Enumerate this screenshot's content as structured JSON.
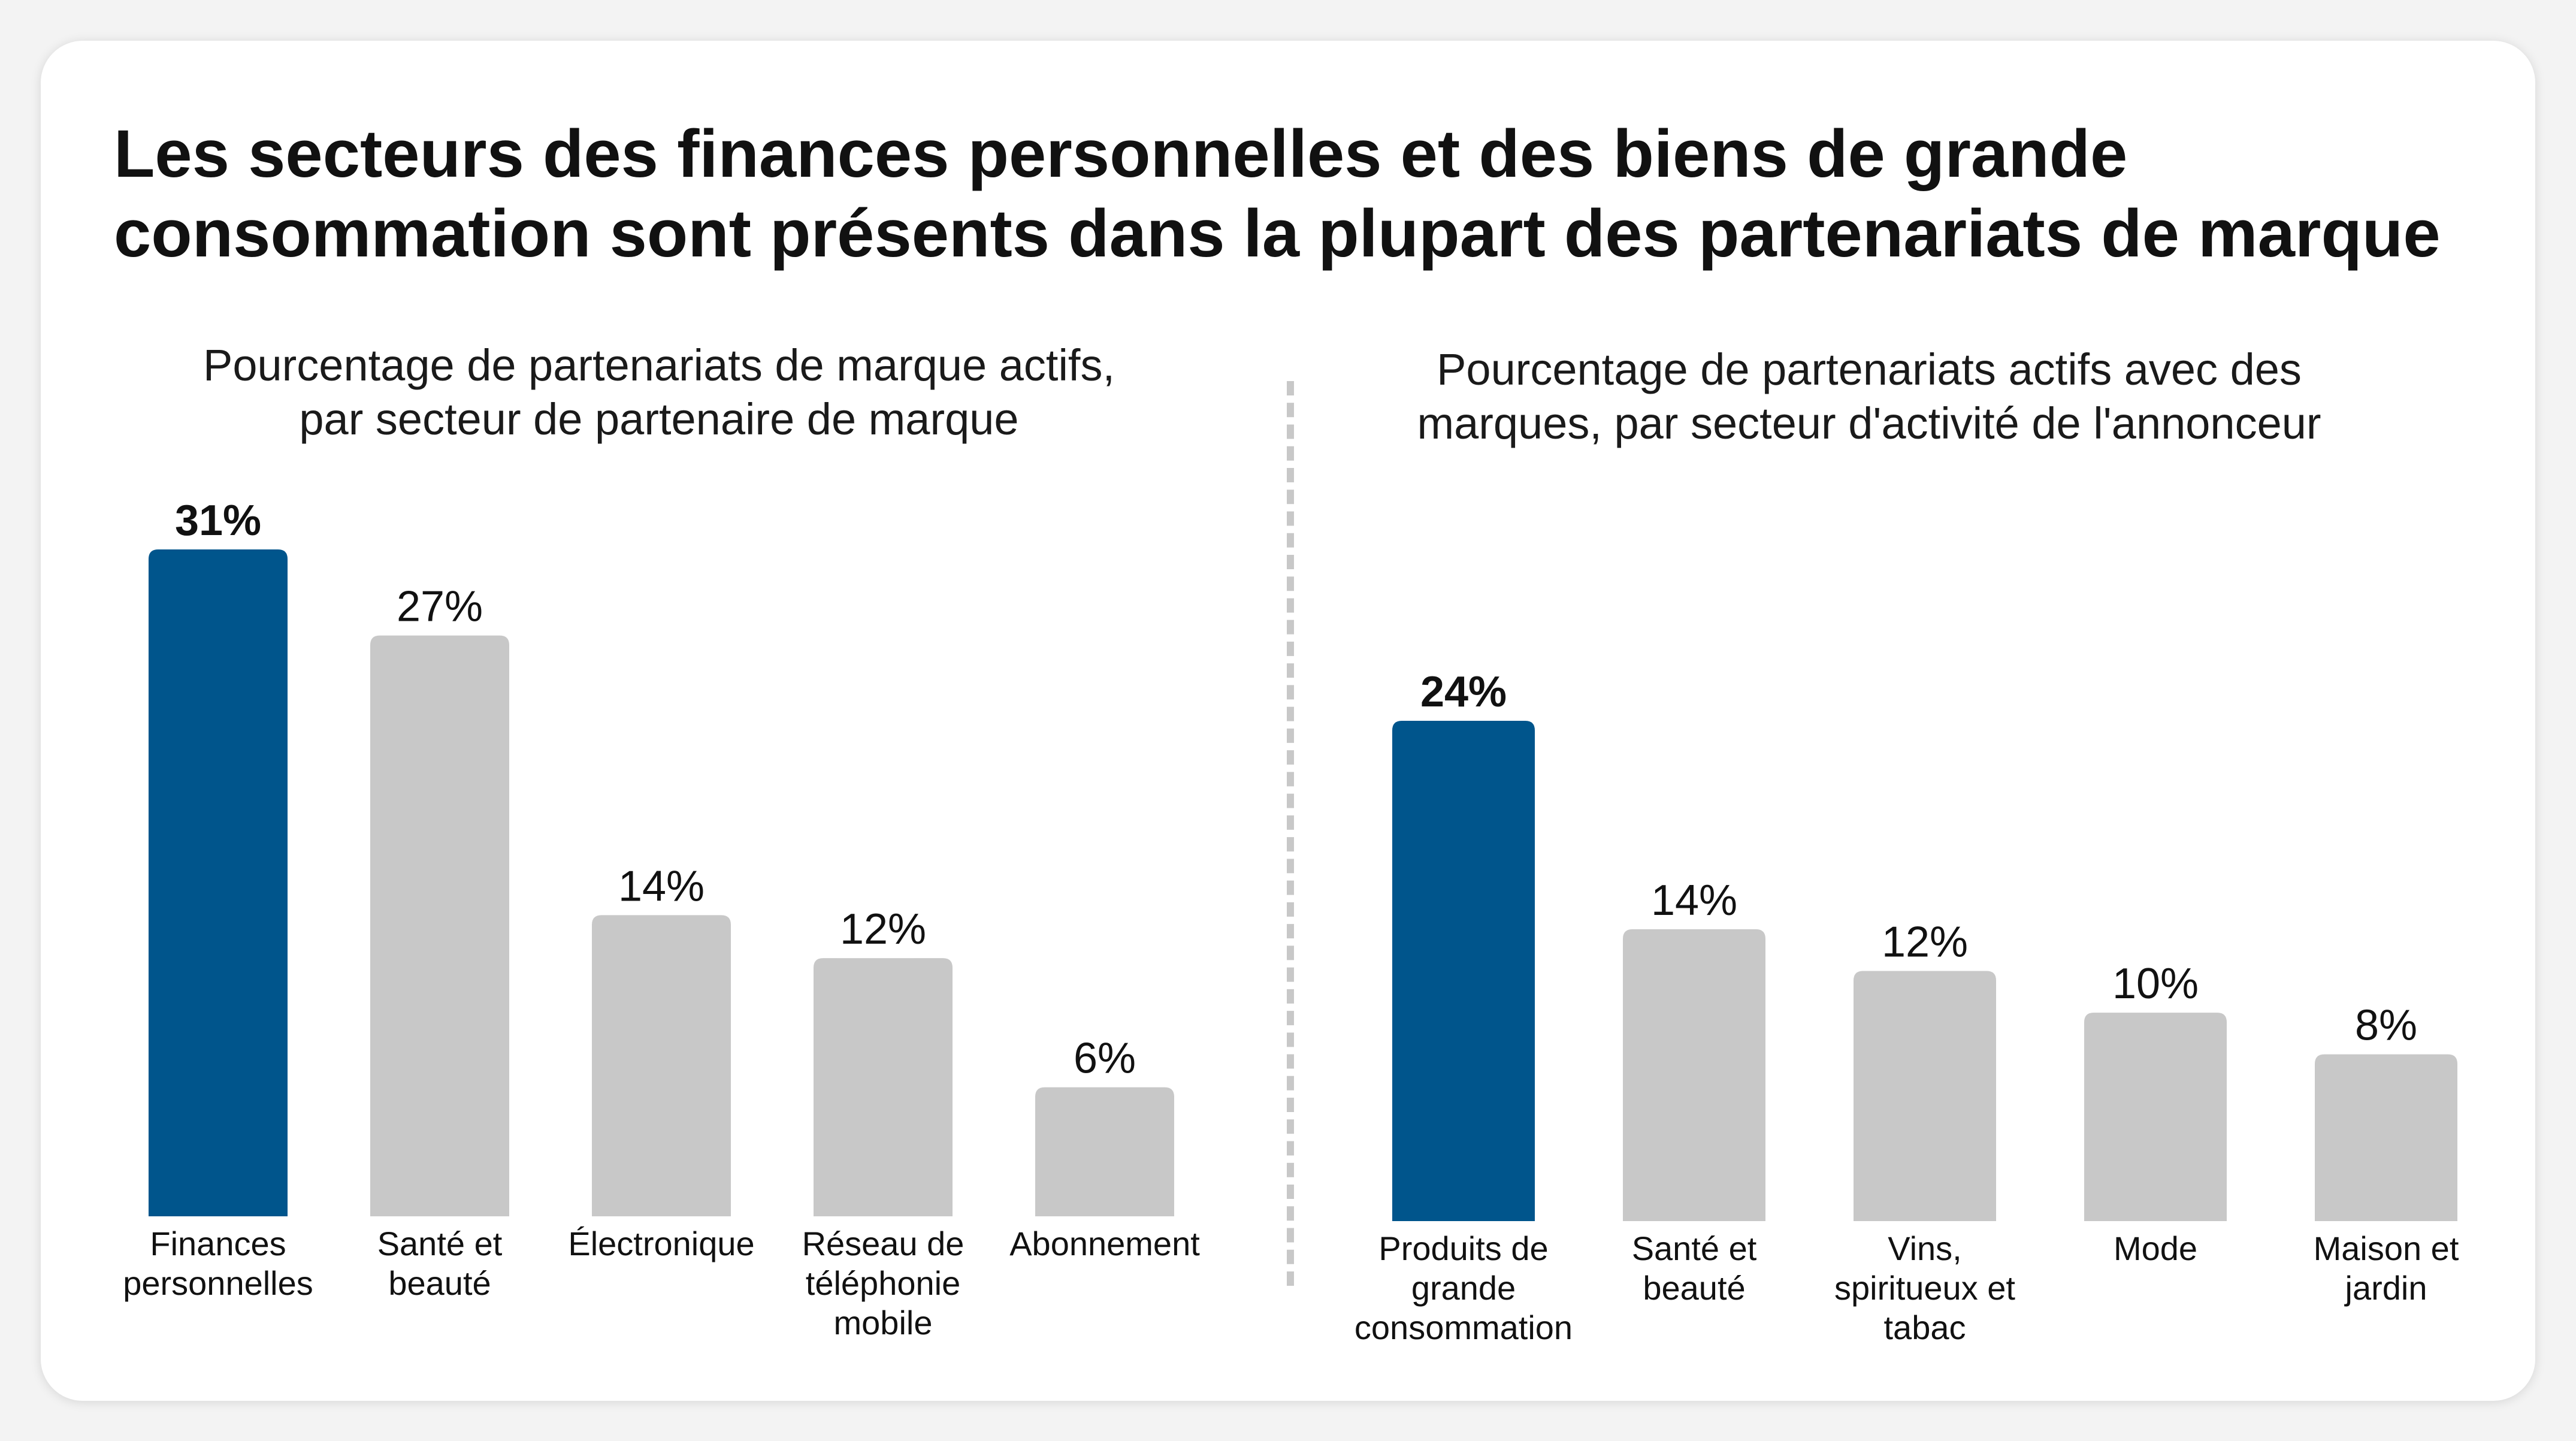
{
  "title": "Les secteurs des finances personnelles et des biens de grande consommation sont présents dans la plupart des partenariats de marque",
  "colors": {
    "highlight": "#00558c",
    "default": "#c8c8c8",
    "text": "#111111"
  },
  "chart_data": [
    {
      "type": "bar",
      "title": "Pourcentage de partenariats de marque actifs, par secteur de partenaire de marque",
      "xlabel": "",
      "ylabel": "",
      "ylim": [
        0,
        31
      ],
      "grid": false,
      "categories": [
        [
          "Finances",
          "personnelles"
        ],
        [
          "Santé et",
          "beauté"
        ],
        [
          "Électronique"
        ],
        [
          "Réseau de",
          "téléphonie",
          "mobile"
        ],
        [
          "Abonnement"
        ]
      ],
      "values": [
        31,
        27,
        14,
        12,
        6
      ],
      "value_labels": [
        "31%",
        "27%",
        "14%",
        "12%",
        "6%"
      ],
      "highlight_index": 0
    },
    {
      "type": "bar",
      "title": "Pourcentage de partenariats actifs avec des marques, par secteur d'activité de l'annonceur",
      "xlabel": "",
      "ylabel": "",
      "ylim": [
        0,
        24
      ],
      "grid": false,
      "categories": [
        [
          "Produits de",
          "grande",
          "consommation"
        ],
        [
          "Santé et",
          "beauté"
        ],
        [
          "Vins,",
          "spiritueux et",
          "tabac"
        ],
        [
          "Mode"
        ],
        [
          "Maison et",
          "jardin"
        ]
      ],
      "values": [
        24,
        14,
        12,
        10,
        8
      ],
      "value_labels": [
        "24%",
        "14%",
        "12%",
        "10%",
        "8%"
      ],
      "highlight_index": 0
    }
  ]
}
